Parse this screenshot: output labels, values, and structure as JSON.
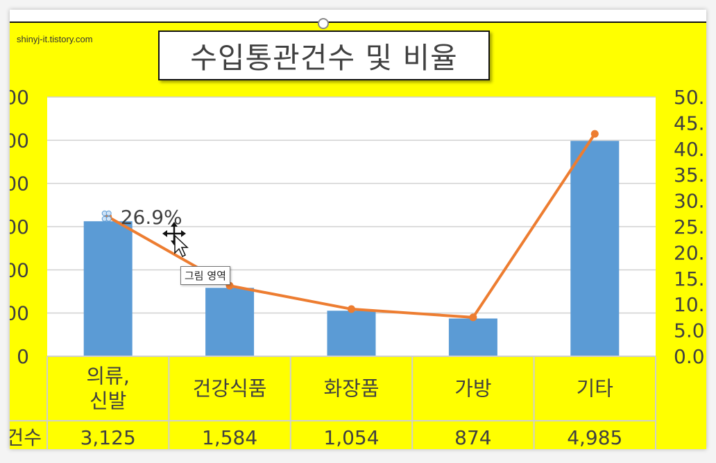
{
  "watermark": "shinyj-it.tistory.com",
  "tooltip": "그림 영역",
  "chart_data": {
    "type": "bar",
    "title": "수입통관건수 및 비율",
    "categories": [
      "의류,\n신발",
      "건강식품",
      "화장품",
      "가방",
      "기타"
    ],
    "series": [
      {
        "name": "건수",
        "type": "bar",
        "axis": "left",
        "values": [
          3125,
          1584,
          1054,
          874,
          4985
        ],
        "color": "#5b9bd5"
      },
      {
        "type": "line",
        "axis": "right",
        "values": [
          26.9,
          13.6,
          9.1,
          7.5,
          42.9
        ],
        "color": "#ed7d31"
      }
    ],
    "ylim_left": [
      0,
      6000
    ],
    "ylim_right": [
      0,
      50
    ],
    "y_left_ticks": [
      "0",
      "00",
      "00",
      "00",
      "00",
      "00",
      "00"
    ],
    "y_right_ticks": [
      "0.0",
      "5.0",
      "10.",
      "15.",
      "20.",
      "25.",
      "30.",
      "35.",
      "40.",
      "45.",
      "50."
    ],
    "data_labels": [
      {
        "series": 1,
        "index": 0,
        "text": "26.9%"
      }
    ],
    "table": {
      "row_label": "건수",
      "row_label_visible": "건수",
      "values": [
        "3,125",
        "1,584",
        "1,054",
        "874",
        "4,985"
      ]
    },
    "grid": true,
    "colors": {
      "background": "#ffff00",
      "plot": "#ffffff",
      "bar": "#5b9bd5",
      "line": "#ed7d31",
      "text": "#404040"
    }
  }
}
